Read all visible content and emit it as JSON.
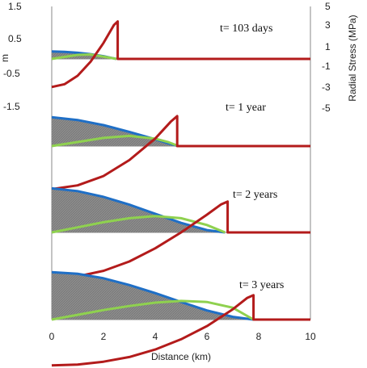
{
  "chart_data": {
    "type": "area",
    "xlabel": "Distance (km)",
    "ylabel_left": "m",
    "ylabel_right": "Radial Stress (MPa)",
    "xlim": [
      0,
      10
    ],
    "xticks": [
      "0",
      "2",
      "4",
      "6",
      "8",
      "10"
    ],
    "ylim_left": [
      -1.5,
      1.5
    ],
    "yticks_left": [
      "1.5",
      "0.5",
      "-0.5",
      "-1.5"
    ],
    "ylim_right": [
      -5,
      5
    ],
    "yticks_right": [
      "5",
      "3",
      "1",
      "-1",
      "-3",
      "-5"
    ],
    "colors": {
      "blue": "#1f6fc6",
      "green": "#8fd14f",
      "red": "#b31b1b",
      "gray": "#8c8c8c"
    },
    "panels": [
      {
        "label": "t= 103 days",
        "blue": {
          "x": [
            0,
            0.5,
            1.0,
            1.5,
            2.0,
            2.3,
            2.5
          ],
          "y": [
            0.22,
            0.21,
            0.18,
            0.14,
            0.08,
            0.03,
            0.0
          ]
        },
        "green": {
          "x": [
            0,
            0.5,
            1.0,
            1.5,
            2.0,
            2.5
          ],
          "y": [
            0.0,
            0.06,
            0.12,
            0.13,
            0.07,
            0.0
          ]
        },
        "red": {
          "x": [
            0,
            0.5,
            1.0,
            1.5,
            2.0,
            2.4,
            2.55,
            2.55,
            10
          ],
          "y": [
            -3.0,
            -2.7,
            -1.8,
            -0.3,
            1.7,
            3.6,
            4.0,
            0.0,
            0.0
          ]
        }
      },
      {
        "label": "t= 1 year",
        "blue": {
          "x": [
            0,
            1,
            2,
            3,
            4,
            4.5,
            4.9
          ],
          "y": [
            0.85,
            0.77,
            0.62,
            0.42,
            0.2,
            0.08,
            0.0
          ]
        },
        "green": {
          "x": [
            0,
            1,
            2,
            3,
            4,
            4.5,
            4.9
          ],
          "y": [
            0.0,
            0.12,
            0.24,
            0.3,
            0.22,
            0.12,
            0.0
          ]
        },
        "red": {
          "x": [
            0,
            1,
            2,
            3,
            4,
            4.6,
            4.85,
            4.85,
            10
          ],
          "y": [
            -4.6,
            -4.2,
            -3.2,
            -1.5,
            0.8,
            2.6,
            3.2,
            0.0,
            0.0
          ]
        }
      },
      {
        "label": "t= 2 years",
        "blue": {
          "x": [
            0,
            1,
            2,
            3,
            4,
            5,
            6,
            6.7
          ],
          "y": [
            1.3,
            1.22,
            1.05,
            0.82,
            0.55,
            0.28,
            0.07,
            0.0
          ]
        },
        "green": {
          "x": [
            0,
            1,
            2,
            3,
            4,
            5,
            6,
            6.7
          ],
          "y": [
            0.0,
            0.15,
            0.3,
            0.42,
            0.48,
            0.42,
            0.22,
            0.0
          ]
        },
        "red": {
          "x": [
            0,
            1,
            2,
            3,
            4,
            5,
            6,
            6.55,
            6.8,
            6.8,
            10
          ],
          "y": [
            -4.9,
            -4.7,
            -4.1,
            -3.1,
            -1.7,
            0.0,
            1.9,
            3.0,
            3.3,
            0.0,
            0.0
          ]
        }
      },
      {
        "label": "t= 3 years",
        "blue": {
          "x": [
            0,
            1,
            2,
            3,
            4,
            5,
            6,
            7,
            7.8
          ],
          "y": [
            1.4,
            1.35,
            1.22,
            1.02,
            0.78,
            0.52,
            0.27,
            0.08,
            0.0
          ]
        },
        "green": {
          "x": [
            0,
            1,
            2,
            3,
            4,
            5,
            6,
            7,
            7.8
          ],
          "y": [
            0.0,
            0.14,
            0.28,
            0.4,
            0.5,
            0.55,
            0.52,
            0.35,
            0.0
          ]
        },
        "red": {
          "x": [
            0,
            1,
            2,
            3,
            4,
            5,
            6,
            7,
            7.55,
            7.8,
            7.8,
            10
          ],
          "y": [
            -4.9,
            -4.8,
            -4.5,
            -4.0,
            -3.2,
            -2.1,
            -0.7,
            1.1,
            2.3,
            2.6,
            0.0,
            0.0
          ]
        }
      }
    ]
  }
}
